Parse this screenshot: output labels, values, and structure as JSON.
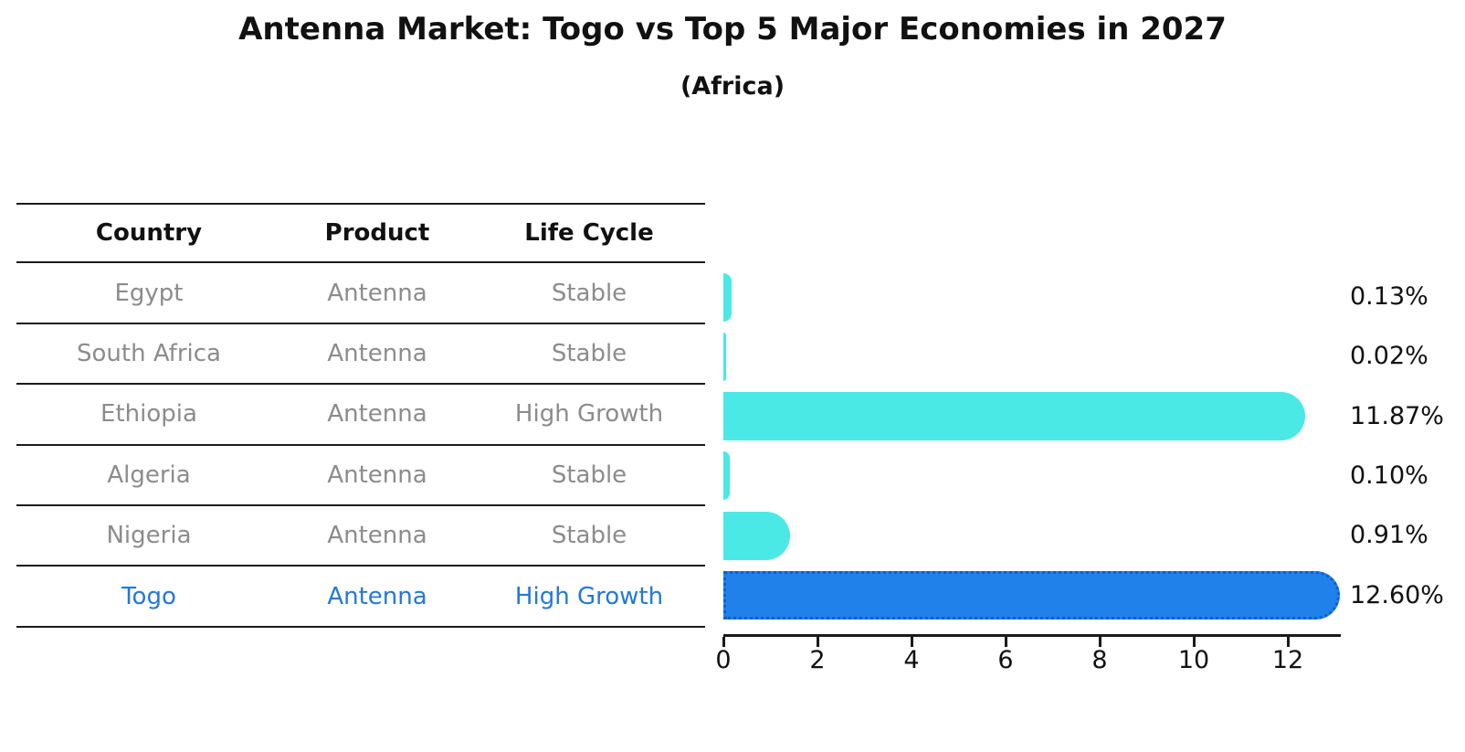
{
  "title": "Antenna Market: Togo vs Top 5 Major Economies in 2027",
  "subtitle": "(Africa)",
  "table": {
    "headers": [
      "Country",
      "Product",
      "Life Cycle"
    ],
    "rows": [
      {
        "country": "Egypt",
        "product": "Antenna",
        "life_cycle": "Stable",
        "highlight": false
      },
      {
        "country": "South Africa",
        "product": "Antenna",
        "life_cycle": "Stable",
        "highlight": false
      },
      {
        "country": "Ethiopia",
        "product": "Antenna",
        "life_cycle": "High Growth",
        "highlight": false
      },
      {
        "country": "Algeria",
        "product": "Antenna",
        "life_cycle": "Stable",
        "highlight": false
      },
      {
        "country": "Nigeria",
        "product": "Antenna",
        "life_cycle": "Stable",
        "highlight": false
      },
      {
        "country": "Togo",
        "product": "Antenna",
        "life_cycle": "High Growth",
        "highlight": true
      }
    ]
  },
  "chart_data": {
    "type": "bar",
    "orientation": "horizontal",
    "title": "Antenna Market: Togo vs Top 5 Major Economies in 2027",
    "subtitle": "(Africa)",
    "categories": [
      "Egypt",
      "South Africa",
      "Ethiopia",
      "Algeria",
      "Nigeria",
      "Togo"
    ],
    "values": [
      0.13,
      0.02,
      11.87,
      0.1,
      0.91,
      12.6
    ],
    "value_labels": [
      "0.13%",
      "0.02%",
      "11.87%",
      "0.10%",
      "0.91%",
      "12.60%"
    ],
    "x_ticks": [
      0,
      2,
      4,
      6,
      8,
      10,
      12
    ],
    "xlim": [
      0,
      13.1
    ],
    "grid": false,
    "legend": "none",
    "highlight_index": 5,
    "colors": {
      "default_bar": "#4be9e6",
      "highlight_bar": "#1f81e9",
      "highlight_border": "#0d5fd0",
      "highlight_text": "#2478d8",
      "row_text": "#8c8c8c",
      "axis": "#1a1a1a"
    }
  }
}
